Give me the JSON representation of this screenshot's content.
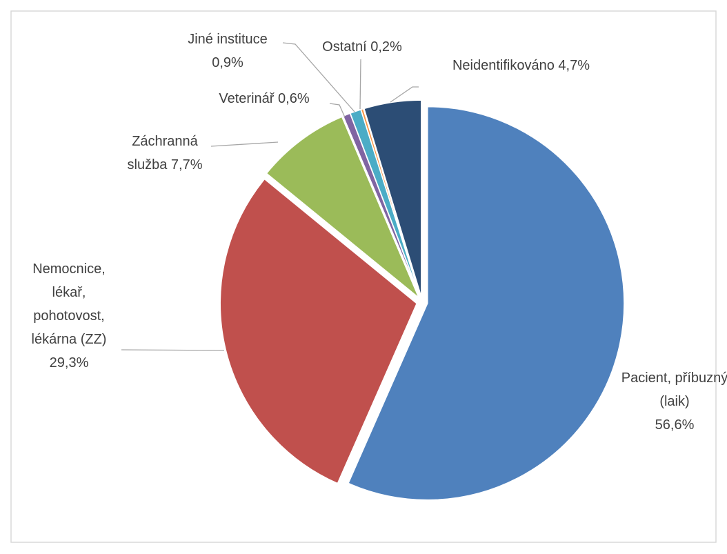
{
  "chart_data": {
    "type": "pie",
    "categories": [
      "Pacient, příbuzný (laik)",
      "Nemocnice, lékař, pohotovost, lékárna (ZZ)",
      "Záchranná služba",
      "Veterinář",
      "Jiné instituce",
      "Ostatní",
      "Neidentifikováno"
    ],
    "values": [
      56.6,
      29.3,
      7.7,
      0.6,
      0.9,
      0.2,
      4.7
    ],
    "value_labels": [
      "56,6%",
      "29,3%",
      "7,7%",
      "0,6%",
      "0,9%",
      "0,2%",
      "4,7%"
    ],
    "colors": [
      "#4f81bd",
      "#c0504d",
      "#9bbb59",
      "#8064a2",
      "#4bacc6",
      "#f79646",
      "#2c4d75"
    ]
  }
}
